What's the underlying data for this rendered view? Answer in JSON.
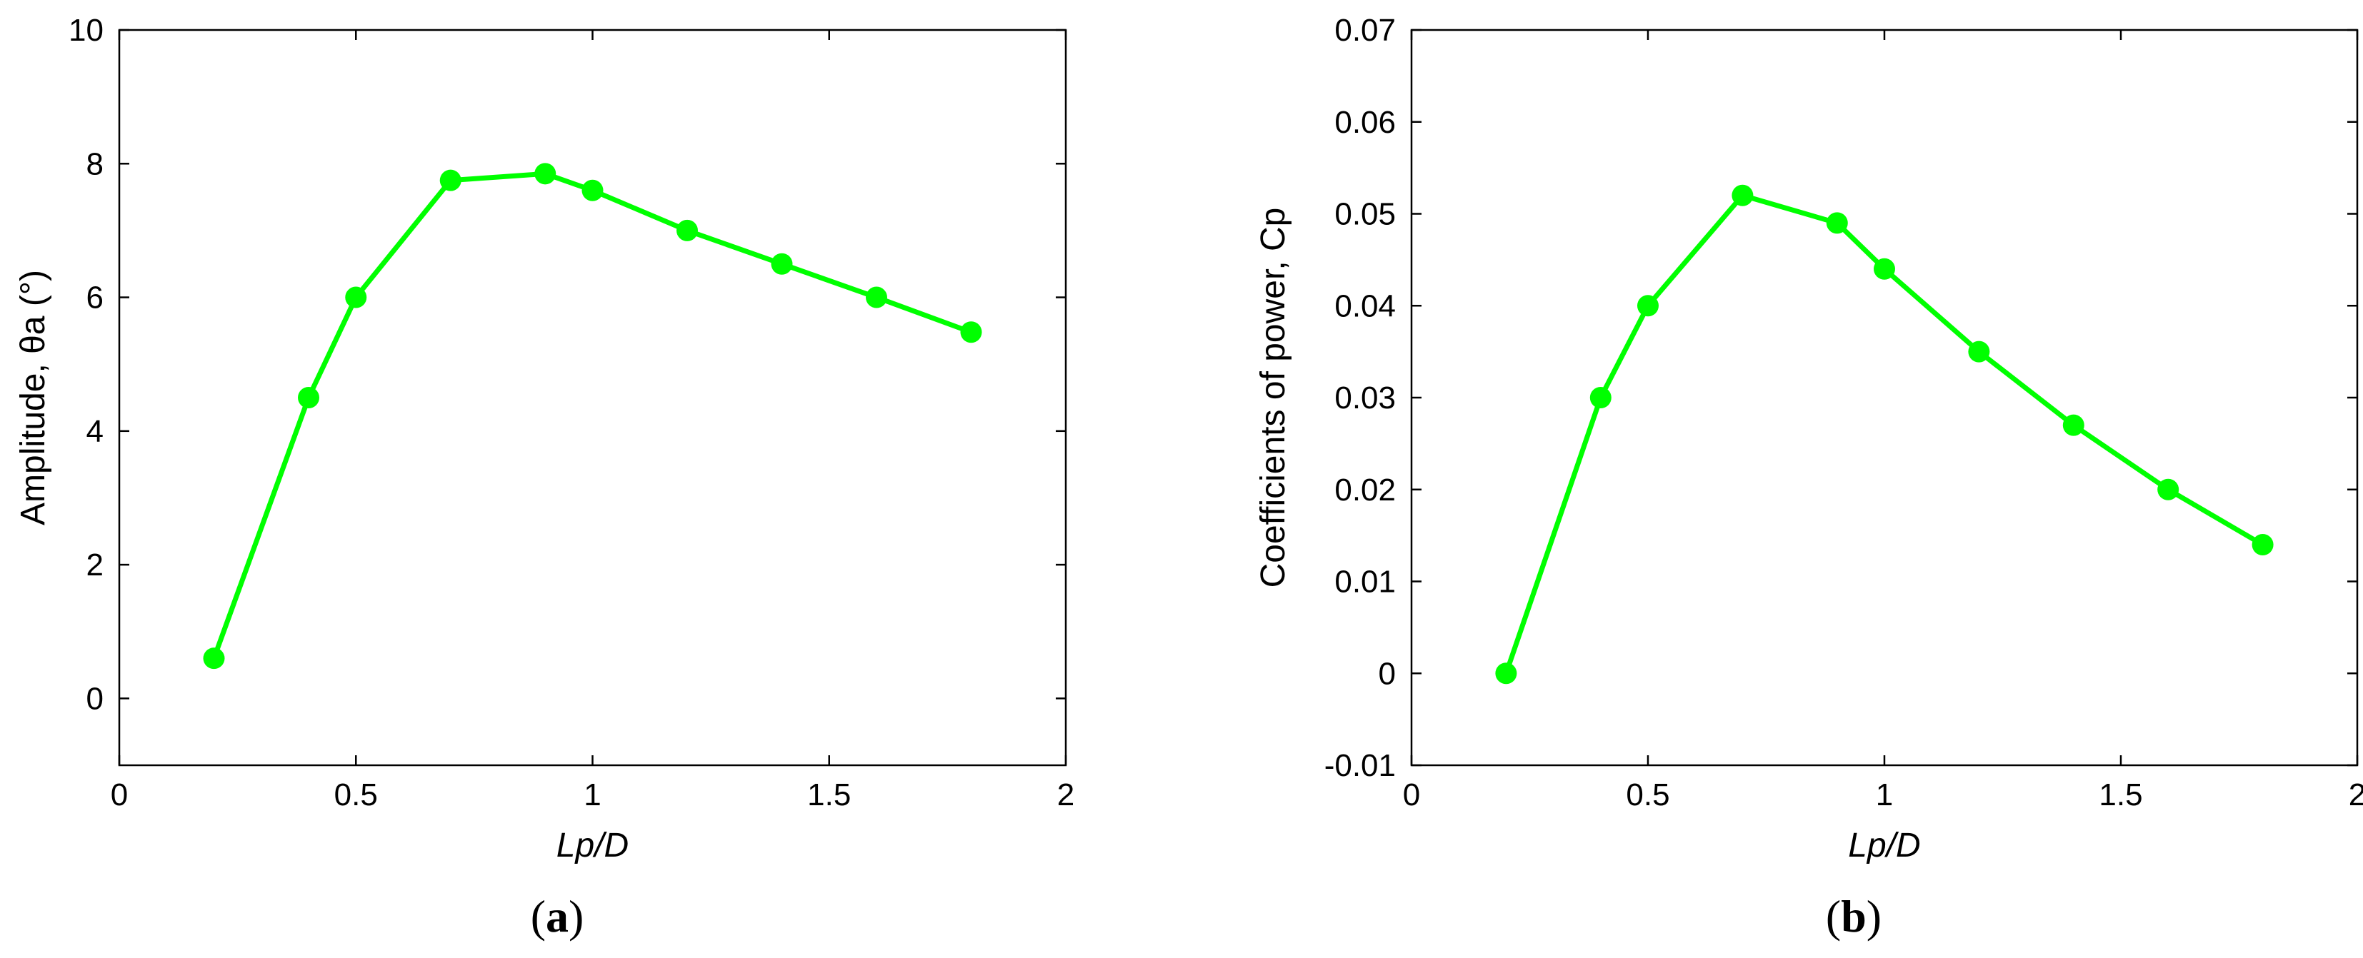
{
  "chart_data": [
    {
      "type": "line",
      "panel_label": "a",
      "xlabel": "Lp/D",
      "ylabel": "Amplitude, θa (°)",
      "xlim": [
        0,
        2
      ],
      "ylim": [
        -1,
        10
      ],
      "xticks": [
        0,
        0.5,
        1,
        1.5,
        2
      ],
      "xtick_labels": [
        "0",
        "0.5",
        "1",
        "1.5",
        "2"
      ],
      "yticks": [
        0,
        2,
        4,
        6,
        8,
        10
      ],
      "ytick_labels": [
        "0",
        "2",
        "4",
        "6",
        "8",
        "10"
      ],
      "grid": false,
      "color": "#00ff00",
      "series": [
        {
          "x": [
            0.2,
            0.4,
            0.5,
            0.7,
            0.9,
            1.0,
            1.2,
            1.4,
            1.6,
            1.8
          ],
          "y": [
            0.6,
            4.5,
            6.0,
            7.75,
            7.85,
            7.6,
            7.0,
            6.5,
            6.0,
            5.48
          ]
        }
      ]
    },
    {
      "type": "line",
      "panel_label": "b",
      "xlabel": "Lp/D",
      "ylabel": "Coefficients of power,  Cp",
      "xlim": [
        0,
        2
      ],
      "ylim": [
        -0.01,
        0.07
      ],
      "xticks": [
        0,
        0.5,
        1,
        1.5,
        2
      ],
      "xtick_labels": [
        "0",
        "0.5",
        "1",
        "1.5",
        "2"
      ],
      "yticks": [
        -0.01,
        0,
        0.01,
        0.02,
        0.03,
        0.04,
        0.05,
        0.06,
        0.07
      ],
      "ytick_labels": [
        "-0.01",
        "0",
        "0.01",
        "0.02",
        "0.03",
        "0.04",
        "0.05",
        "0.06",
        "0.07"
      ],
      "grid": false,
      "color": "#00ff00",
      "series": [
        {
          "x": [
            0.2,
            0.4,
            0.5,
            0.7,
            0.9,
            1.0,
            1.2,
            1.4,
            1.6,
            1.8
          ],
          "y": [
            0.0,
            0.03,
            0.04,
            0.052,
            0.049,
            0.044,
            0.035,
            0.027,
            0.02,
            0.014
          ]
        }
      ]
    }
  ]
}
